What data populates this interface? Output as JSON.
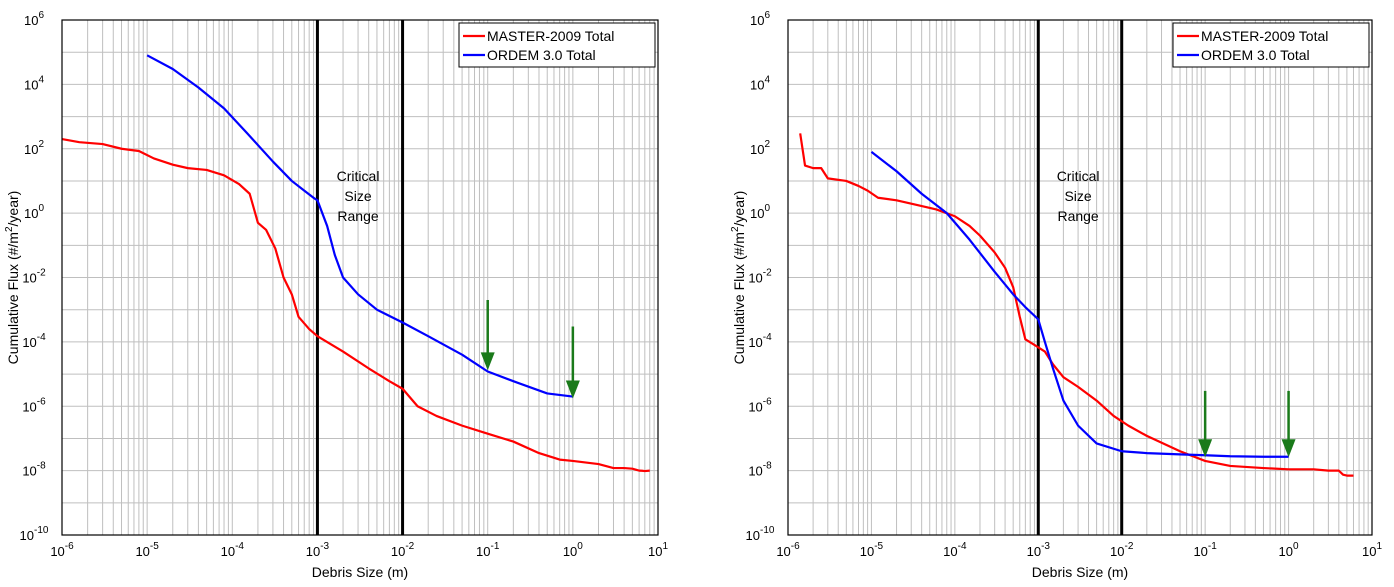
{
  "chart_data": [
    {
      "type": "line",
      "x_scale": "log",
      "y_scale": "log",
      "xlim": [
        1e-06,
        10
      ],
      "ylim": [
        1e-10,
        1000000.0
      ],
      "grid": true,
      "legend_position": "top-right",
      "xlabel": "Debris Size (m)",
      "ylabel_parts": [
        "Cumulative Flux (#/m",
        "2",
        "/year)"
      ],
      "x_tick_labels": [
        {
          "base": "10",
          "exp": "-6"
        },
        {
          "base": "10",
          "exp": "-5"
        },
        {
          "base": "10",
          "exp": "-4"
        },
        {
          "base": "10",
          "exp": "-3"
        },
        {
          "base": "10",
          "exp": "-2"
        },
        {
          "base": "10",
          "exp": "-1"
        },
        {
          "base": "10",
          "exp": "0"
        },
        {
          "base": "10",
          "exp": "1"
        }
      ],
      "y_tick_labels": [
        {
          "base": "10",
          "exp": "-10"
        },
        {
          "base": "10",
          "exp": "-8"
        },
        {
          "base": "10",
          "exp": "-6"
        },
        {
          "base": "10",
          "exp": "-4"
        },
        {
          "base": "10",
          "exp": "-2"
        },
        {
          "base": "10",
          "exp": "0"
        },
        {
          "base": "10",
          "exp": "2"
        },
        {
          "base": "10",
          "exp": "4"
        },
        {
          "base": "10",
          "exp": "6"
        }
      ],
      "annotation": [
        "Critical",
        "Size",
        "Range"
      ],
      "annotation_at": [
        0.003,
        10
      ],
      "critical_range": [
        0.001,
        0.01
      ],
      "arrows": [
        {
          "x": 0.1,
          "y_from": 0.002,
          "y_to": 1.5e-05
        },
        {
          "x": 1.0,
          "y_from": 0.0003,
          "y_to": 2e-06
        }
      ],
      "arrow_color": "#1a7a1a",
      "series": [
        {
          "name": "MASTER-2009 Total",
          "color": "#ff0000",
          "points": [
            [
              1e-06,
              200
            ],
            [
              1.6e-06,
              160
            ],
            [
              3e-06,
              140
            ],
            [
              5e-06,
              100
            ],
            [
              8e-06,
              85
            ],
            [
              1.2e-05,
              50
            ],
            [
              2e-05,
              32
            ],
            [
              3e-05,
              25
            ],
            [
              5e-05,
              22
            ],
            [
              8e-05,
              15
            ],
            [
              0.00012,
              8
            ],
            [
              0.00016,
              4
            ],
            [
              0.0002,
              0.5
            ],
            [
              0.00025,
              0.3
            ],
            [
              0.00032,
              0.08
            ],
            [
              0.0004,
              0.01
            ],
            [
              0.0005,
              0.003
            ],
            [
              0.0006,
              0.0006
            ],
            [
              0.0008,
              0.00025
            ],
            [
              0.001,
              0.00015
            ],
            [
              0.002,
              5e-05
            ],
            [
              0.004,
              1.5e-05
            ],
            [
              0.007,
              6e-06
            ],
            [
              0.01,
              3.5e-06
            ],
            [
              0.015,
              1e-06
            ],
            [
              0.025,
              5e-07
            ],
            [
              0.05,
              2.5e-07
            ],
            [
              0.1,
              1.4e-07
            ],
            [
              0.2,
              8e-08
            ],
            [
              0.4,
              3.5e-08
            ],
            [
              0.7,
              2.2e-08
            ],
            [
              1.0,
              2e-08
            ],
            [
              2.0,
              1.6e-08
            ],
            [
              3.0,
              1.2e-08
            ],
            [
              4.0,
              1.2e-08
            ],
            [
              5.0,
              1.15e-08
            ],
            [
              6.0,
              1e-08
            ],
            [
              6.5,
              9.9e-09
            ],
            [
              7.0,
              9.7e-09
            ],
            [
              8.0,
              1e-08
            ]
          ]
        },
        {
          "name": "ORDEM 3.0 Total",
          "color": "#0000ff",
          "points": [
            [
              1e-05,
              80000
            ],
            [
              2e-05,
              30000
            ],
            [
              4e-05,
              8000
            ],
            [
              8e-05,
              1800
            ],
            [
              0.00015,
              300
            ],
            [
              0.0003,
              40
            ],
            [
              0.0005,
              10
            ],
            [
              0.0007,
              5
            ],
            [
              0.0009,
              3
            ],
            [
              0.001,
              2.5
            ],
            [
              0.0013,
              0.4
            ],
            [
              0.0016,
              0.05
            ],
            [
              0.002,
              0.01
            ],
            [
              0.003,
              0.003
            ],
            [
              0.005,
              0.001
            ],
            [
              0.01,
              0.0004
            ],
            [
              0.02,
              0.00015
            ],
            [
              0.05,
              4e-05
            ],
            [
              0.1,
              1.2e-05
            ],
            [
              0.2,
              6e-06
            ],
            [
              0.5,
              2.5e-06
            ],
            [
              1.0,
              2e-06
            ]
          ]
        }
      ]
    },
    {
      "type": "line",
      "x_scale": "log",
      "y_scale": "log",
      "xlim": [
        1e-06,
        10
      ],
      "ylim": [
        1e-10,
        1000000.0
      ],
      "grid": true,
      "legend_position": "top-right",
      "xlabel": "Debris Size (m)",
      "ylabel_parts": [
        "Cumulative Flux (#/m",
        "2",
        "/year)"
      ],
      "x_tick_labels": [
        {
          "base": "10",
          "exp": "-6"
        },
        {
          "base": "10",
          "exp": "-5"
        },
        {
          "base": "10",
          "exp": "-4"
        },
        {
          "base": "10",
          "exp": "-3"
        },
        {
          "base": "10",
          "exp": "-2"
        },
        {
          "base": "10",
          "exp": "-1"
        },
        {
          "base": "10",
          "exp": "0"
        },
        {
          "base": "10",
          "exp": "1"
        }
      ],
      "y_tick_labels": [
        {
          "base": "10",
          "exp": "-10"
        },
        {
          "base": "10",
          "exp": "-8"
        },
        {
          "base": "10",
          "exp": "-6"
        },
        {
          "base": "10",
          "exp": "-4"
        },
        {
          "base": "10",
          "exp": "-2"
        },
        {
          "base": "10",
          "exp": "0"
        },
        {
          "base": "10",
          "exp": "2"
        },
        {
          "base": "10",
          "exp": "4"
        },
        {
          "base": "10",
          "exp": "6"
        }
      ],
      "annotation": [
        "Critical",
        "Size",
        "Range"
      ],
      "annotation_at": [
        0.003,
        10
      ],
      "critical_range": [
        0.001,
        0.01
      ],
      "arrows": [
        {
          "x": 0.1,
          "y_from": 3e-06,
          "y_to": 3e-08
        },
        {
          "x": 1.0,
          "y_from": 3e-06,
          "y_to": 3e-08
        }
      ],
      "arrow_color": "#1a7a1a",
      "series": [
        {
          "name": "MASTER-2009 Total",
          "color": "#ff0000",
          "points": [
            [
              1.4e-06,
              300
            ],
            [
              1.6e-06,
              30
            ],
            [
              2e-06,
              25
            ],
            [
              2.5e-06,
              25
            ],
            [
              3e-06,
              12
            ],
            [
              5e-06,
              10
            ],
            [
              7e-06,
              7
            ],
            [
              9e-06,
              5
            ],
            [
              1.2e-05,
              3
            ],
            [
              2e-05,
              2.5
            ],
            [
              3.5e-05,
              1.8
            ],
            [
              6e-05,
              1.3
            ],
            [
              0.0001,
              0.8
            ],
            [
              0.00015,
              0.4
            ],
            [
              0.0002,
              0.2
            ],
            [
              0.0003,
              0.06
            ],
            [
              0.0004,
              0.02
            ],
            [
              0.0005,
              0.005
            ],
            [
              0.0006,
              0.0006
            ],
            [
              0.0007,
              0.00012
            ],
            [
              0.0009,
              8e-05
            ],
            [
              0.0012,
              5e-05
            ],
            [
              0.0015,
              2e-05
            ],
            [
              0.002,
              8e-06
            ],
            [
              0.003,
              4e-06
            ],
            [
              0.005,
              1.5e-06
            ],
            [
              0.008,
              5e-07
            ],
            [
              0.012,
              2.5e-07
            ],
            [
              0.02,
              1.2e-07
            ],
            [
              0.05,
              4e-08
            ],
            [
              0.1,
              2e-08
            ],
            [
              0.2,
              1.4e-08
            ],
            [
              0.5,
              1.2e-08
            ],
            [
              1.0,
              1.1e-08
            ],
            [
              2.0,
              1.1e-08
            ],
            [
              3.0,
              1e-08
            ],
            [
              4.0,
              1e-08
            ],
            [
              4.5,
              7.5e-09
            ],
            [
              5.0,
              7e-09
            ],
            [
              6.0,
              7e-09
            ]
          ]
        },
        {
          "name": "ORDEM 3.0 Total",
          "color": "#0000ff",
          "points": [
            [
              1e-05,
              80
            ],
            [
              2e-05,
              20
            ],
            [
              4e-05,
              4
            ],
            [
              8e-05,
              1
            ],
            [
              0.00015,
              0.15
            ],
            [
              0.0003,
              0.015
            ],
            [
              0.0005,
              0.003
            ],
            [
              0.0007,
              0.0012
            ],
            [
              0.001,
              0.0005
            ],
            [
              0.0012,
              0.0001
            ],
            [
              0.0015,
              1.5e-05
            ],
            [
              0.002,
              1.5e-06
            ],
            [
              0.003,
              2.5e-07
            ],
            [
              0.005,
              7e-08
            ],
            [
              0.01,
              4e-08
            ],
            [
              0.02,
              3.5e-08
            ],
            [
              0.05,
              3.2e-08
            ],
            [
              0.1,
              3e-08
            ],
            [
              0.2,
              2.8e-08
            ],
            [
              0.5,
              2.7e-08
            ],
            [
              1.0,
              2.7e-08
            ]
          ]
        }
      ]
    }
  ]
}
